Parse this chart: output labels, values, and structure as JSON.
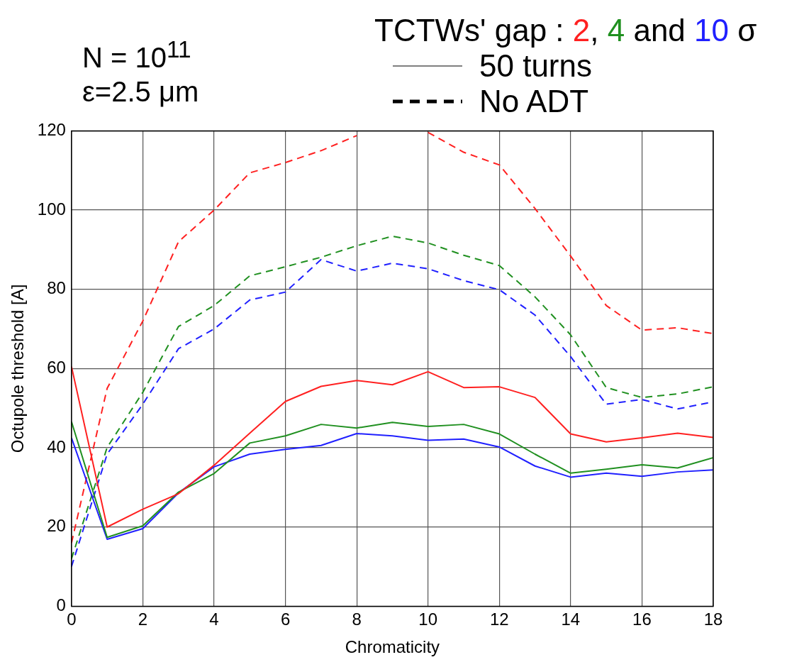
{
  "chart_data": {
    "type": "line",
    "xlabel": "Chromaticity",
    "ylabel": "Octupole threshold [A]",
    "legend_title": "TCTWs' gap : 2, 4 and 10 σ",
    "annotations": [
      "N = 10$^{11}$",
      "ε=2.5 μm",
      "50 turns",
      "No ADT"
    ],
    "x": [
      0,
      1,
      2,
      3,
      4,
      5,
      6,
      7,
      8,
      9,
      10,
      11,
      12,
      13,
      14,
      15,
      16,
      17,
      18
    ],
    "xlim": [
      0,
      18
    ],
    "xticks": [
      0,
      2,
      4,
      6,
      8,
      10,
      12,
      14,
      16,
      18
    ],
    "ylim": [
      0,
      120
    ],
    "yticks": [
      0,
      20,
      40,
      60,
      80,
      100,
      120
    ],
    "grid": true,
    "marker": "none",
    "series": [
      {
        "color": "#ff2020",
        "line_style": "solid",
        "values": [
          60.5,
          20,
          24.5,
          28.4,
          35.6,
          43.7,
          51.7,
          55.5,
          57,
          55.9,
          59.2,
          55.2,
          55.4,
          52.7,
          43.5,
          41.5,
          42.5,
          43.7,
          42.6
        ]
      },
      {
        "color": "#209020",
        "line_style": "solid",
        "values": [
          46.6,
          17.4,
          20.3,
          28.8,
          33.5,
          41.2,
          43,
          45.9,
          45,
          46.4,
          45.4,
          45.9,
          43.5,
          38.4,
          33.6,
          34.6,
          35.7,
          34.9,
          37.5
        ]
      },
      {
        "color": "#2020ff",
        "line_style": "solid",
        "values": [
          42.5,
          16.9,
          19.6,
          28.6,
          35.2,
          38.4,
          39.6,
          40.6,
          43.6,
          43,
          41.9,
          42.2,
          40.2,
          35.4,
          32.6,
          33.6,
          32.8,
          33.9,
          34.4
        ]
      },
      {
        "color": "#ff2020",
        "line_style": "dashed",
        "values": [
          16,
          55,
          72,
          92,
          100,
          109.4,
          112,
          115,
          118.8,
          null,
          119.6,
          114.6,
          111.4,
          100.4,
          88.4,
          75.9,
          69.7,
          70.3,
          68.8
        ]
      },
      {
        "color": "#209020",
        "line_style": "dashed",
        "values": [
          12,
          40.1,
          54,
          70.6,
          75.9,
          83.4,
          85.7,
          88.1,
          91,
          93.4,
          91.7,
          88.6,
          86,
          78.1,
          68.5,
          55.2,
          52.7,
          53.6,
          55.4
        ]
      },
      {
        "color": "#2020ff",
        "line_style": "dashed",
        "values": [
          10,
          38.4,
          51,
          65,
          70,
          77.3,
          79.3,
          87.5,
          84.6,
          86.6,
          85.2,
          82.2,
          79.9,
          73.5,
          63,
          51,
          52.2,
          49.8,
          51.6
        ]
      }
    ]
  }
}
